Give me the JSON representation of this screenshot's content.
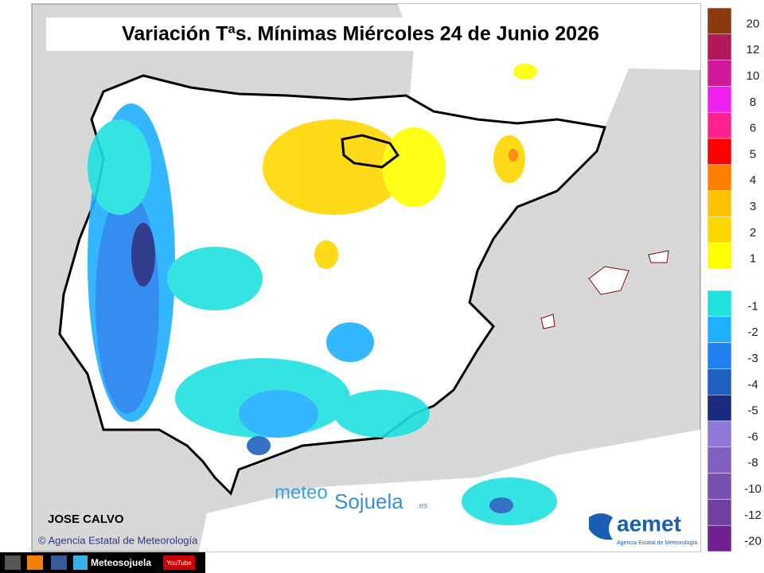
{
  "title": "Variación Tªs. Mínimas Miércoles 24 de Junio 2026",
  "legend": {
    "positive": [
      {
        "value": 20,
        "color": "#8b3a0f"
      },
      {
        "value": 12,
        "color": "#b0185a"
      },
      {
        "value": 10,
        "color": "#d01898"
      },
      {
        "value": 8,
        "color": "#f020f0"
      },
      {
        "value": 6,
        "color": "#ff2090"
      },
      {
        "value": 5,
        "color": "#ff0000"
      },
      {
        "value": 4,
        "color": "#ff7f00"
      },
      {
        "value": 3,
        "color": "#ffc000"
      },
      {
        "value": 2,
        "color": "#ffd700"
      },
      {
        "value": 1,
        "color": "#ffff00"
      }
    ],
    "negative": [
      {
        "value": -1,
        "color": "#20e0e0"
      },
      {
        "value": -2,
        "color": "#20b0ff"
      },
      {
        "value": -3,
        "color": "#2080f0"
      },
      {
        "value": -4,
        "color": "#2060c0"
      },
      {
        "value": -5,
        "color": "#1a2a80"
      },
      {
        "value": -6,
        "color": "#9078d8"
      },
      {
        "value": -8,
        "color": "#8060c0"
      },
      {
        "value": -10,
        "color": "#7850b0"
      },
      {
        "value": -12,
        "color": "#7040a0"
      },
      {
        "value": -20,
        "color": "#702090"
      }
    ]
  },
  "author": "JOSE CALVO",
  "copyright": "© Agencia Estatal de Meteorología",
  "watermark": {
    "part1": "meteo",
    "part2": "Sojuela",
    "suffix": ".es"
  },
  "aemet": {
    "name": "aemet",
    "subtitle": "Agencia Estatal de Meteorología"
  },
  "footer": {
    "account": "Meteosojuela",
    "youtube": "YouTube"
  }
}
